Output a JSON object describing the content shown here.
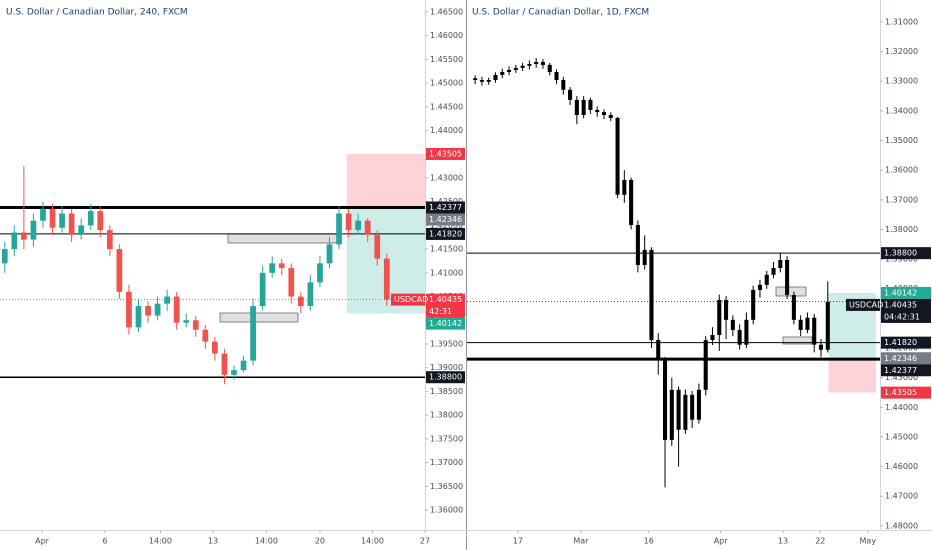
{
  "chart_data": [
    {
      "type": "candlestick",
      "title": "U.S. Dollar / Canadian Dollar, 240, FXCM",
      "color_up": "#26a69a",
      "color_down": "#ef5350",
      "open": [
        1.412,
        1.415,
        1.4185,
        1.417,
        1.421,
        1.4235,
        1.4195,
        1.4225,
        1.418,
        1.42,
        1.423,
        1.419,
        1.415,
        1.406,
        1.3985,
        1.403,
        1.401,
        1.4035,
        1.405,
        1.3995,
        1.4,
        1.398,
        1.3955,
        1.393,
        1.3885,
        1.3895,
        1.3915,
        1.403,
        1.41,
        1.412,
        1.411,
        1.405,
        1.403,
        1.408,
        1.412,
        1.416,
        1.4225,
        1.419,
        1.421,
        1.418,
        1.413
      ],
      "high": [
        1.4165,
        1.42,
        1.4325,
        1.4225,
        1.425,
        1.4245,
        1.424,
        1.4235,
        1.4215,
        1.4245,
        1.424,
        1.42,
        1.416,
        1.4075,
        1.4045,
        1.404,
        1.405,
        1.4065,
        1.406,
        1.4015,
        1.401,
        1.399,
        1.3965,
        1.394,
        1.3905,
        1.3925,
        1.4045,
        1.4115,
        1.4135,
        1.413,
        1.412,
        1.406,
        1.4095,
        1.4135,
        1.4175,
        1.424,
        1.4235,
        1.4225,
        1.4215,
        1.419,
        1.414
      ],
      "low": [
        1.41,
        1.4135,
        1.415,
        1.4155,
        1.4195,
        1.418,
        1.4185,
        1.4165,
        1.417,
        1.419,
        1.4175,
        1.4135,
        1.4045,
        1.397,
        1.3975,
        1.3995,
        1.4,
        1.402,
        1.398,
        1.3985,
        1.3965,
        1.394,
        1.3915,
        1.3865,
        1.3875,
        1.389,
        1.3905,
        1.402,
        1.409,
        1.4095,
        1.4035,
        1.4015,
        1.402,
        1.407,
        1.411,
        1.415,
        1.4175,
        1.418,
        1.4165,
        1.4115,
        1.403
      ],
      "close": [
        1.415,
        1.4185,
        1.417,
        1.421,
        1.4235,
        1.4195,
        1.4225,
        1.418,
        1.42,
        1.423,
        1.419,
        1.415,
        1.406,
        1.3985,
        1.403,
        1.401,
        1.4035,
        1.405,
        1.3995,
        1.4,
        1.398,
        1.3955,
        1.393,
        1.3885,
        1.3895,
        1.3915,
        1.403,
        1.41,
        1.412,
        1.411,
        1.405,
        1.403,
        1.408,
        1.412,
        1.416,
        1.4225,
        1.419,
        1.421,
        1.418,
        1.413,
        1.4044
      ],
      "xlim": [
        -0.5,
        44
      ],
      "xticks": [
        {
          "value": 3.9,
          "label": "Apr"
        },
        {
          "value": 10.5,
          "label": "6"
        },
        {
          "value": 16.3,
          "label": "14:00"
        },
        {
          "value": 21.8,
          "label": "13"
        },
        {
          "value": 27.4,
          "label": "14:00"
        },
        {
          "value": 33.0,
          "label": "20"
        },
        {
          "value": 38.5,
          "label": "14:00"
        },
        {
          "value": 44,
          "label": "27"
        }
      ],
      "ylim": [
        1.3558,
        1.4675
      ],
      "yticks": [
        {
          "value": 1.465,
          "label": "1.46500"
        },
        {
          "value": 1.46,
          "label": "1.46000"
        },
        {
          "value": 1.455,
          "label": "1.45500"
        },
        {
          "value": 1.45,
          "label": "1.45000"
        },
        {
          "value": 1.445,
          "label": "1.44500"
        },
        {
          "value": 1.44,
          "label": "1.44000"
        },
        {
          "value": 1.435,
          "label": "1.43500"
        },
        {
          "value": 1.43,
          "label": "1.43000"
        },
        {
          "value": 1.425,
          "label": "1.42500"
        },
        {
          "value": 1.42,
          "label": "1.42000"
        },
        {
          "value": 1.415,
          "label": "1.41500"
        },
        {
          "value": 1.41,
          "label": "1.41000"
        },
        {
          "value": 1.405,
          "label": "1.40500"
        },
        {
          "value": 1.4,
          "label": "1.40000"
        },
        {
          "value": 1.395,
          "label": "1.39500"
        },
        {
          "value": 1.39,
          "label": "1.39000"
        },
        {
          "value": 1.385,
          "label": "1.38500"
        },
        {
          "value": 1.38,
          "label": "1.38000"
        },
        {
          "value": 1.375,
          "label": "1.37500"
        },
        {
          "value": 1.37,
          "label": "1.37000"
        },
        {
          "value": 1.365,
          "label": "1.36500"
        },
        {
          "value": 1.36,
          "label": "1.36000"
        }
      ],
      "lines": [
        {
          "price": 1.42377,
          "width": 3
        },
        {
          "price": 1.4182,
          "width": 1
        },
        {
          "price": 1.388,
          "width": 1.5
        }
      ],
      "position": {
        "entry": 1.42346,
        "stop": 1.43505,
        "target": 1.40142,
        "from_x": 35.8,
        "to_x": 44
      },
      "tags": [
        {
          "price": 1.43505,
          "color": "#f23645"
        },
        {
          "price": 1.42377,
          "color": "#131722"
        },
        {
          "price": 1.42346,
          "color": "#787b86"
        },
        {
          "price": 1.4182,
          "label": "1.41820",
          "color": "#131722"
        },
        {
          "price": 1.40142,
          "color": "#22ab94"
        },
        {
          "price": 1.388,
          "label": "1.38800",
          "color": "#131722"
        }
      ],
      "current": {
        "name": "USDCAD",
        "price": 1.40435,
        "countdown": "42:31",
        "color": "#f23645"
      }
    },
    {
      "type": "candlestick",
      "title": "U.S. Dollar / Canadian Dollar, 1D, FXCM",
      "color_up": "#000000",
      "color_down": "#000000",
      "open": [
        1.329,
        1.3296,
        1.3302,
        1.3296,
        1.3279,
        1.3269,
        1.3262,
        1.3255,
        1.3248,
        1.3242,
        1.3235,
        1.3245,
        1.3269,
        1.3296,
        1.3329,
        1.3363,
        1.3414,
        1.3363,
        1.3397,
        1.3404,
        1.3414,
        1.3424,
        1.3683,
        1.3633,
        1.3785,
        1.392,
        1.3869,
        1.4173,
        1.424,
        1.451,
        1.4341,
        1.4476,
        1.4358,
        1.4442,
        1.4341,
        1.4173,
        1.4156,
        1.4038,
        1.4105,
        1.4139,
        1.4189,
        1.4105,
        1.4004,
        1.3987,
        1.3953,
        1.393,
        1.3903,
        1.4021,
        1.4105,
        1.4139,
        1.4098,
        1.4189,
        1.4206
      ],
      "high": [
        1.331,
        1.3315,
        1.3312,
        1.3305,
        1.329,
        1.328,
        1.3272,
        1.3265,
        1.326,
        1.3255,
        1.3258,
        1.328,
        1.331,
        1.3345,
        1.338,
        1.3445,
        1.3425,
        1.341,
        1.342,
        1.3428,
        1.3435,
        1.3695,
        1.371,
        1.38,
        1.3945,
        1.3935,
        1.42,
        1.429,
        1.467,
        1.453,
        1.46,
        1.449,
        1.447,
        1.4455,
        1.436,
        1.419,
        1.421,
        1.417,
        1.416,
        1.4205,
        1.42,
        1.412,
        1.403,
        1.4,
        1.3965,
        1.3945,
        1.4035,
        1.412,
        1.416,
        1.415,
        1.4215,
        1.423,
        1.4215
      ],
      "low": [
        1.328,
        1.3285,
        1.3288,
        1.327,
        1.3258,
        1.325,
        1.3245,
        1.3238,
        1.323,
        1.3222,
        1.3225,
        1.3238,
        1.326,
        1.3285,
        1.332,
        1.335,
        1.335,
        1.3355,
        1.3385,
        1.3395,
        1.3405,
        1.342,
        1.36,
        1.3625,
        1.377,
        1.382,
        1.386,
        1.415,
        1.423,
        1.43,
        1.433,
        1.434,
        1.4345,
        1.432,
        1.416,
        1.413,
        1.402,
        1.4025,
        1.409,
        1.412,
        1.408,
        1.399,
        1.397,
        1.394,
        1.391,
        1.388,
        1.389,
        1.401,
        1.409,
        1.408,
        1.4085,
        1.417,
        1.3975
      ],
      "close": [
        1.3296,
        1.3302,
        1.3296,
        1.3279,
        1.3269,
        1.3262,
        1.3255,
        1.3248,
        1.3242,
        1.3235,
        1.3245,
        1.3269,
        1.3296,
        1.3329,
        1.3363,
        1.3414,
        1.3363,
        1.3397,
        1.3404,
        1.3414,
        1.3424,
        1.3683,
        1.3633,
        1.3785,
        1.392,
        1.3869,
        1.4173,
        1.424,
        1.451,
        1.4341,
        1.4476,
        1.4358,
        1.4442,
        1.4341,
        1.4173,
        1.4156,
        1.4038,
        1.4105,
        1.4139,
        1.4189,
        1.4105,
        1.4004,
        1.3987,
        1.3953,
        1.393,
        1.3903,
        1.4021,
        1.4105,
        1.4139,
        1.4098,
        1.4189,
        1.4206,
        1.4044
      ],
      "xlim": [
        -1.2,
        59.7
      ],
      "xticks": [
        {
          "value": 6.3,
          "label": "17"
        },
        {
          "value": 15.6,
          "label": "Mar"
        },
        {
          "value": 25.6,
          "label": "16"
        },
        {
          "value": 36.2,
          "label": "Apr"
        },
        {
          "value": 45.4,
          "label": "13"
        },
        {
          "value": 50.9,
          "label": "22"
        },
        {
          "value": 57.9,
          "label": "May"
        }
      ],
      "ylim": [
        1.4814,
        1.3026
      ],
      "yticks": [
        {
          "value": 1.31,
          "label": "1.31000"
        },
        {
          "value": 1.32,
          "label": "1.32000"
        },
        {
          "value": 1.33,
          "label": "1.33000"
        },
        {
          "value": 1.34,
          "label": "1.34000"
        },
        {
          "value": 1.35,
          "label": "1.35000"
        },
        {
          "value": 1.36,
          "label": "1.36000"
        },
        {
          "value": 1.37,
          "label": "1.37000"
        },
        {
          "value": 1.38,
          "label": "1.38000"
        },
        {
          "value": 1.39,
          "label": "1.39000"
        },
        {
          "value": 1.4,
          "label": "1.40000"
        },
        {
          "value": 1.41,
          "label": "1.41000"
        },
        {
          "value": 1.42,
          "label": "1.42000"
        },
        {
          "value": 1.43,
          "label": "1.43000"
        },
        {
          "value": 1.44,
          "label": "1.44000"
        },
        {
          "value": 1.45,
          "label": "1.45000"
        },
        {
          "value": 1.46,
          "label": "1.46000"
        },
        {
          "value": 1.47,
          "label": "1.47000"
        },
        {
          "value": 1.48,
          "label": "1.48000"
        }
      ],
      "lines": [
        {
          "price": 1.388,
          "width": 1
        },
        {
          "price": 1.4182,
          "width": 1
        },
        {
          "price": 1.42377,
          "width": 3
        }
      ],
      "position": {
        "entry": 1.42346,
        "stop": 1.43505,
        "target": 1.40142,
        "from_x": 52.1,
        "to_x": 59.1
      },
      "tags": [
        {
          "price": 1.388,
          "label": "1.38800",
          "color": "#131722"
        },
        {
          "price": 1.40142,
          "color": "#22ab94"
        },
        {
          "price": 1.4182,
          "label": "1.41820",
          "color": "#131722"
        },
        {
          "price": 1.42346,
          "color": "#787b86"
        },
        {
          "price": 1.42377,
          "color": "#131722"
        },
        {
          "price": 1.43505,
          "color": "#f23645"
        }
      ],
      "current": {
        "name": "USDCAD",
        "price": 1.40435,
        "countdown": "04:42:31",
        "color": "#131722"
      }
    }
  ]
}
